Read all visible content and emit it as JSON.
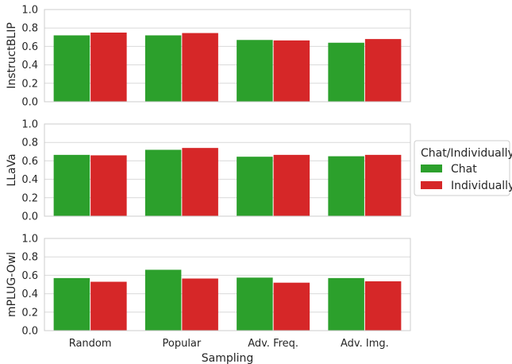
{
  "chart_data": {
    "type": "bar",
    "xlabel": "Sampling",
    "categories": [
      "Random",
      "Popular",
      "Adv. Freq.",
      "Adv. Img."
    ],
    "ylim": [
      0,
      1.0
    ],
    "yticks": [
      "0.0",
      "0.2",
      "0.4",
      "0.6",
      "0.8",
      "1.0"
    ],
    "grid": "horizontal",
    "legend": {
      "title": "Chat/Individually",
      "placement": "right",
      "entries": [
        {
          "label": "Chat",
          "color": "#2ca02c"
        },
        {
          "label": "Individually",
          "color": "#d62728"
        }
      ]
    },
    "panels": [
      {
        "ylabel": "InstructBLIP",
        "series": [
          {
            "name": "Chat",
            "values": [
              0.72,
              0.72,
              0.67,
              0.64
            ]
          },
          {
            "name": "Individually",
            "values": [
              0.75,
              0.745,
              0.665,
              0.68
            ]
          }
        ]
      },
      {
        "ylabel": "LLaVa",
        "series": [
          {
            "name": "Chat",
            "values": [
              0.665,
              0.72,
              0.645,
              0.65
            ]
          },
          {
            "name": "Individually",
            "values": [
              0.66,
              0.74,
              0.665,
              0.665
            ]
          }
        ]
      },
      {
        "ylabel": "mPLUG-Owl",
        "series": [
          {
            "name": "Chat",
            "values": [
              0.57,
              0.66,
              0.575,
              0.57
            ]
          },
          {
            "name": "Individually",
            "values": [
              0.53,
              0.565,
              0.52,
              0.535
            ]
          }
        ]
      }
    ]
  }
}
